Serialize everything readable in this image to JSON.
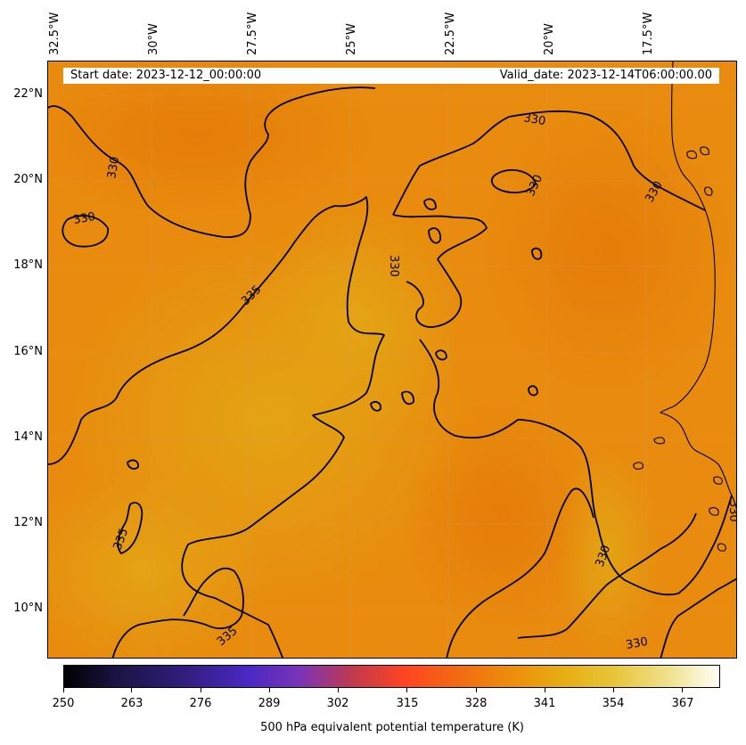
{
  "header": {
    "start_date": "Start date: 2023-12-12_00:00:00",
    "valid_date": "Valid_date: 2023-12-14T06:00:00.00"
  },
  "axes": {
    "longitude_labels": [
      "32.5°W",
      "30°W",
      "27.5°W",
      "25°W",
      "22.5°W",
      "20°W",
      "17.5°W"
    ],
    "latitude_labels": [
      "22°N",
      "20°N",
      "18°N",
      "16°N",
      "14°N",
      "12°N",
      "10°N"
    ]
  },
  "contours": {
    "labels": [
      "330",
      "330",
      "330",
      "330",
      "330",
      "330",
      "330",
      "330",
      "335",
      "335",
      "335",
      "330"
    ]
  },
  "colorbar": {
    "ticks": [
      "250",
      "263",
      "276",
      "289",
      "302",
      "315",
      "328",
      "341",
      "354",
      "367"
    ],
    "label": "500 hPa equivalent potential temperature (K)"
  },
  "colors": {
    "field_base": "#e88a0c",
    "field_warm": "#e39d12",
    "contour": "#000000",
    "coastline": "#000000"
  }
}
